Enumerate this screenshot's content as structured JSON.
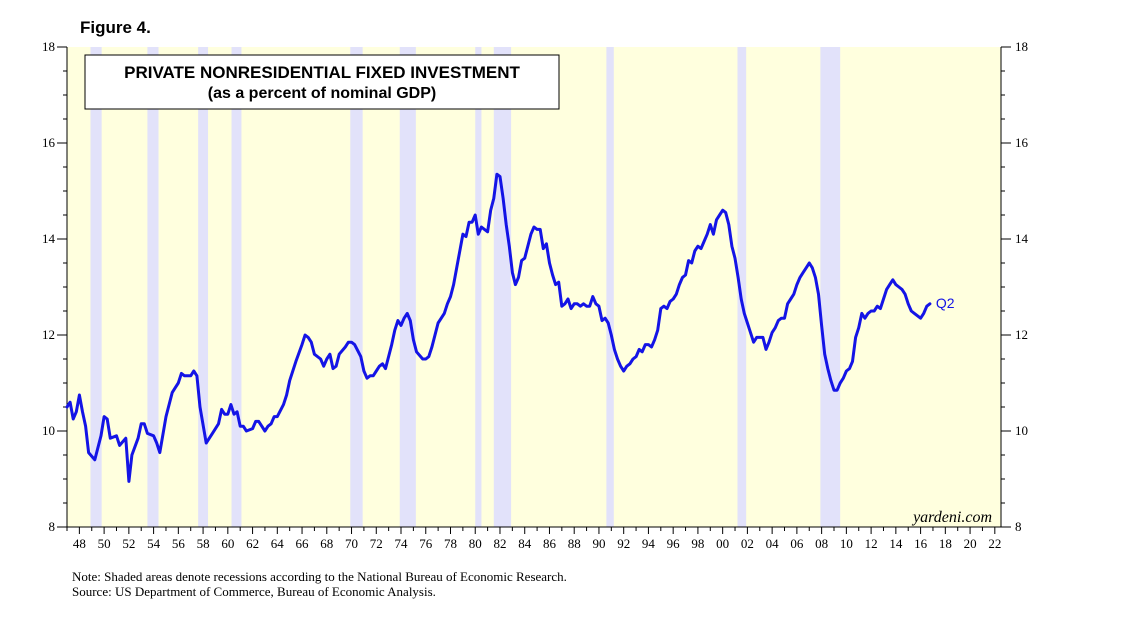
{
  "figure_label": "Figure 4.",
  "chart_data": {
    "type": "line",
    "title": "PRIVATE NONRESIDENTIAL FIXED INVESTMENT",
    "subtitle": "(as a percent of nominal GDP)",
    "xlabel": "",
    "ylabel": "",
    "xlim": [
      1947.0,
      2022.5
    ],
    "ylim": [
      8,
      18
    ],
    "y_ticks": [
      "8",
      "10",
      "12",
      "14",
      "16",
      "18"
    ],
    "y_tick_values": [
      8,
      10,
      12,
      14,
      16,
      18
    ],
    "x_tick_labels": [
      "48",
      "50",
      "52",
      "54",
      "56",
      "58",
      "60",
      "62",
      "64",
      "66",
      "68",
      "70",
      "72",
      "74",
      "76",
      "78",
      "80",
      "82",
      "84",
      "86",
      "88",
      "90",
      "92",
      "94",
      "96",
      "98",
      "00",
      "02",
      "04",
      "06",
      "08",
      "10",
      "12",
      "14",
      "16",
      "18",
      "20",
      "22"
    ],
    "x_tick_years": [
      1948,
      1950,
      1952,
      1954,
      1956,
      1958,
      1960,
      1962,
      1964,
      1966,
      1968,
      1970,
      1972,
      1974,
      1976,
      1978,
      1980,
      1982,
      1984,
      1986,
      1988,
      1990,
      1992,
      1994,
      1996,
      1998,
      2000,
      2002,
      2004,
      2006,
      2008,
      2010,
      2012,
      2014,
      2016,
      2018,
      2020,
      2022
    ],
    "recessions": [
      [
        1948.9,
        1949.8
      ],
      [
        1953.5,
        1954.4
      ],
      [
        1957.6,
        1958.4
      ],
      [
        1960.3,
        1961.1
      ],
      [
        1969.9,
        1970.9
      ],
      [
        1973.9,
        1975.2
      ],
      [
        1980.0,
        1980.5
      ],
      [
        1981.5,
        1982.9
      ],
      [
        1990.6,
        1991.2
      ],
      [
        2001.2,
        2001.9
      ],
      [
        2007.9,
        2009.5
      ]
    ],
    "series": [
      {
        "name": "Private nonresidential fixed investment (% of nominal GDP)",
        "color": "#1414e6",
        "end_label": "Q2",
        "points": [
          [
            1947.0,
            10.5
          ],
          [
            1947.25,
            10.6
          ],
          [
            1947.5,
            10.25
          ],
          [
            1947.75,
            10.4
          ],
          [
            1948.0,
            10.75
          ],
          [
            1948.25,
            10.4
          ],
          [
            1948.5,
            10.1
          ],
          [
            1948.75,
            9.55
          ],
          [
            1949.25,
            9.4
          ],
          [
            1949.75,
            9.9
          ],
          [
            1950.0,
            10.3
          ],
          [
            1950.25,
            10.25
          ],
          [
            1950.5,
            9.85
          ],
          [
            1951.0,
            9.9
          ],
          [
            1951.25,
            9.7
          ],
          [
            1951.75,
            9.85
          ],
          [
            1952.0,
            8.95
          ],
          [
            1952.25,
            9.5
          ],
          [
            1952.75,
            9.85
          ],
          [
            1953.0,
            10.15
          ],
          [
            1953.25,
            10.15
          ],
          [
            1953.5,
            9.95
          ],
          [
            1954.0,
            9.9
          ],
          [
            1954.25,
            9.75
          ],
          [
            1954.5,
            9.55
          ],
          [
            1955.0,
            10.3
          ],
          [
            1955.5,
            10.8
          ],
          [
            1955.75,
            10.9
          ],
          [
            1956.0,
            11.0
          ],
          [
            1956.25,
            11.2
          ],
          [
            1956.5,
            11.15
          ],
          [
            1957.0,
            11.15
          ],
          [
            1957.25,
            11.25
          ],
          [
            1957.5,
            11.15
          ],
          [
            1957.75,
            10.5
          ],
          [
            1958.25,
            9.75
          ],
          [
            1958.75,
            9.95
          ],
          [
            1959.25,
            10.15
          ],
          [
            1959.5,
            10.45
          ],
          [
            1959.75,
            10.35
          ],
          [
            1960.0,
            10.35
          ],
          [
            1960.25,
            10.55
          ],
          [
            1960.5,
            10.35
          ],
          [
            1960.75,
            10.4
          ],
          [
            1961.0,
            10.1
          ],
          [
            1961.25,
            10.1
          ],
          [
            1961.5,
            10.0
          ],
          [
            1962.0,
            10.05
          ],
          [
            1962.25,
            10.2
          ],
          [
            1962.5,
            10.2
          ],
          [
            1962.75,
            10.1
          ],
          [
            1963.0,
            10.0
          ],
          [
            1963.25,
            10.1
          ],
          [
            1963.5,
            10.15
          ],
          [
            1963.75,
            10.3
          ],
          [
            1964.0,
            10.3
          ],
          [
            1964.5,
            10.55
          ],
          [
            1964.75,
            10.75
          ],
          [
            1965.0,
            11.05
          ],
          [
            1965.5,
            11.45
          ],
          [
            1966.0,
            11.8
          ],
          [
            1966.25,
            12.0
          ],
          [
            1966.5,
            11.95
          ],
          [
            1966.75,
            11.85
          ],
          [
            1967.0,
            11.6
          ],
          [
            1967.5,
            11.5
          ],
          [
            1967.75,
            11.35
          ],
          [
            1968.0,
            11.5
          ],
          [
            1968.25,
            11.6
          ],
          [
            1968.5,
            11.3
          ],
          [
            1968.75,
            11.35
          ],
          [
            1969.0,
            11.6
          ],
          [
            1969.5,
            11.75
          ],
          [
            1969.75,
            11.85
          ],
          [
            1970.0,
            11.85
          ],
          [
            1970.25,
            11.8
          ],
          [
            1970.75,
            11.55
          ],
          [
            1971.0,
            11.25
          ],
          [
            1971.25,
            11.1
          ],
          [
            1971.5,
            11.15
          ],
          [
            1971.75,
            11.15
          ],
          [
            1972.0,
            11.25
          ],
          [
            1972.25,
            11.35
          ],
          [
            1972.5,
            11.4
          ],
          [
            1972.75,
            11.3
          ],
          [
            1973.0,
            11.55
          ],
          [
            1973.25,
            11.8
          ],
          [
            1973.5,
            12.1
          ],
          [
            1973.75,
            12.3
          ],
          [
            1974.0,
            12.2
          ],
          [
            1974.25,
            12.35
          ],
          [
            1974.5,
            12.45
          ],
          [
            1974.75,
            12.3
          ],
          [
            1975.0,
            11.9
          ],
          [
            1975.25,
            11.65
          ],
          [
            1975.75,
            11.5
          ],
          [
            1976.0,
            11.5
          ],
          [
            1976.25,
            11.55
          ],
          [
            1976.5,
            11.75
          ],
          [
            1976.75,
            12.0
          ],
          [
            1977.0,
            12.25
          ],
          [
            1977.5,
            12.45
          ],
          [
            1977.75,
            12.65
          ],
          [
            1978.0,
            12.8
          ],
          [
            1978.25,
            13.05
          ],
          [
            1978.5,
            13.4
          ],
          [
            1978.75,
            13.75
          ],
          [
            1979.0,
            14.1
          ],
          [
            1979.25,
            14.05
          ],
          [
            1979.5,
            14.35
          ],
          [
            1979.75,
            14.35
          ],
          [
            1980.0,
            14.5
          ],
          [
            1980.25,
            14.1
          ],
          [
            1980.5,
            14.25
          ],
          [
            1980.75,
            14.2
          ],
          [
            1981.0,
            14.15
          ],
          [
            1981.25,
            14.6
          ],
          [
            1981.5,
            14.85
          ],
          [
            1981.75,
            15.35
          ],
          [
            1982.0,
            15.3
          ],
          [
            1982.25,
            14.85
          ],
          [
            1982.5,
            14.3
          ],
          [
            1982.75,
            13.85
          ],
          [
            1983.0,
            13.3
          ],
          [
            1983.25,
            13.05
          ],
          [
            1983.5,
            13.2
          ],
          [
            1983.75,
            13.55
          ],
          [
            1984.0,
            13.6
          ],
          [
            1984.25,
            13.85
          ],
          [
            1984.5,
            14.1
          ],
          [
            1984.75,
            14.25
          ],
          [
            1985.0,
            14.2
          ],
          [
            1985.25,
            14.2
          ],
          [
            1985.5,
            13.8
          ],
          [
            1985.75,
            13.9
          ],
          [
            1986.0,
            13.5
          ],
          [
            1986.25,
            13.25
          ],
          [
            1986.5,
            13.05
          ],
          [
            1986.75,
            13.1
          ],
          [
            1987.0,
            12.6
          ],
          [
            1987.25,
            12.65
          ],
          [
            1987.5,
            12.75
          ],
          [
            1987.75,
            12.55
          ],
          [
            1988.0,
            12.65
          ],
          [
            1988.25,
            12.65
          ],
          [
            1988.5,
            12.6
          ],
          [
            1988.75,
            12.65
          ],
          [
            1989.0,
            12.6
          ],
          [
            1989.25,
            12.6
          ],
          [
            1989.5,
            12.8
          ],
          [
            1989.75,
            12.65
          ],
          [
            1990.0,
            12.6
          ],
          [
            1990.25,
            12.3
          ],
          [
            1990.5,
            12.35
          ],
          [
            1990.75,
            12.25
          ],
          [
            1991.0,
            12.0
          ],
          [
            1991.25,
            11.7
          ],
          [
            1991.5,
            11.5
          ],
          [
            1991.75,
            11.35
          ],
          [
            1992.0,
            11.25
          ],
          [
            1992.25,
            11.35
          ],
          [
            1992.5,
            11.4
          ],
          [
            1992.75,
            11.5
          ],
          [
            1993.0,
            11.55
          ],
          [
            1993.25,
            11.7
          ],
          [
            1993.5,
            11.65
          ],
          [
            1993.75,
            11.8
          ],
          [
            1994.0,
            11.8
          ],
          [
            1994.25,
            11.75
          ],
          [
            1994.5,
            11.9
          ],
          [
            1994.75,
            12.1
          ],
          [
            1995.0,
            12.55
          ],
          [
            1995.25,
            12.6
          ],
          [
            1995.5,
            12.55
          ],
          [
            1995.75,
            12.7
          ],
          [
            1996.0,
            12.75
          ],
          [
            1996.25,
            12.85
          ],
          [
            1996.5,
            13.05
          ],
          [
            1996.75,
            13.2
          ],
          [
            1997.0,
            13.25
          ],
          [
            1997.25,
            13.55
          ],
          [
            1997.5,
            13.5
          ],
          [
            1997.75,
            13.75
          ],
          [
            1998.0,
            13.85
          ],
          [
            1998.25,
            13.8
          ],
          [
            1998.5,
            13.95
          ],
          [
            1998.75,
            14.1
          ],
          [
            1999.0,
            14.3
          ],
          [
            1999.25,
            14.1
          ],
          [
            1999.5,
            14.4
          ],
          [
            1999.75,
            14.5
          ],
          [
            2000.0,
            14.6
          ],
          [
            2000.25,
            14.55
          ],
          [
            2000.5,
            14.3
          ],
          [
            2000.75,
            13.85
          ],
          [
            2001.0,
            13.6
          ],
          [
            2001.25,
            13.2
          ],
          [
            2001.5,
            12.75
          ],
          [
            2001.75,
            12.45
          ],
          [
            2002.0,
            12.25
          ],
          [
            2002.25,
            12.05
          ],
          [
            2002.5,
            11.85
          ],
          [
            2002.75,
            11.95
          ],
          [
            2003.0,
            11.95
          ],
          [
            2003.25,
            11.95
          ],
          [
            2003.5,
            11.7
          ],
          [
            2003.75,
            11.85
          ],
          [
            2004.0,
            12.05
          ],
          [
            2004.25,
            12.15
          ],
          [
            2004.5,
            12.3
          ],
          [
            2004.75,
            12.35
          ],
          [
            2005.0,
            12.35
          ],
          [
            2005.25,
            12.65
          ],
          [
            2005.5,
            12.75
          ],
          [
            2005.75,
            12.85
          ],
          [
            2006.0,
            13.05
          ],
          [
            2006.25,
            13.2
          ],
          [
            2006.5,
            13.3
          ],
          [
            2006.75,
            13.4
          ],
          [
            2007.0,
            13.5
          ],
          [
            2007.25,
            13.4
          ],
          [
            2007.5,
            13.2
          ],
          [
            2007.75,
            12.85
          ],
          [
            2008.0,
            12.2
          ],
          [
            2008.25,
            11.6
          ],
          [
            2008.5,
            11.3
          ],
          [
            2008.75,
            11.05
          ],
          [
            2009.0,
            10.85
          ],
          [
            2009.25,
            10.85
          ],
          [
            2009.5,
            11.0
          ],
          [
            2009.75,
            11.1
          ],
          [
            2010.0,
            11.25
          ],
          [
            2010.25,
            11.3
          ],
          [
            2010.5,
            11.45
          ],
          [
            2010.75,
            11.95
          ],
          [
            2011.0,
            12.15
          ],
          [
            2011.25,
            12.45
          ],
          [
            2011.5,
            12.35
          ],
          [
            2011.75,
            12.45
          ],
          [
            2012.0,
            12.5
          ],
          [
            2012.25,
            12.5
          ],
          [
            2012.5,
            12.6
          ],
          [
            2012.75,
            12.55
          ],
          [
            2013.0,
            12.75
          ],
          [
            2013.25,
            12.95
          ],
          [
            2013.5,
            13.05
          ],
          [
            2013.75,
            13.15
          ],
          [
            2014.0,
            13.05
          ],
          [
            2014.25,
            13.0
          ],
          [
            2014.5,
            12.95
          ],
          [
            2014.75,
            12.85
          ],
          [
            2015.0,
            12.65
          ],
          [
            2015.25,
            12.5
          ],
          [
            2015.5,
            12.45
          ],
          [
            2015.75,
            12.4
          ],
          [
            2016.0,
            12.35
          ],
          [
            2016.25,
            12.45
          ],
          [
            2016.5,
            12.6
          ],
          [
            2016.75,
            12.65
          ]
        ]
      }
    ],
    "legend_box_lines": [
      "PRIVATE NONRESIDENTIAL FIXED INVESTMENT",
      "(as a percent of nominal GDP)"
    ],
    "watermark": "yardeni.com"
  },
  "notes": {
    "line1": "Note: Shaded areas denote recessions according to the National Bureau of Economic Research.",
    "line2": "Source: US Department of Commerce, Bureau of Economic Analysis."
  },
  "colors": {
    "plot_background": "#ffffde",
    "recession_shade": "#e2e2fa",
    "line": "#1414e6"
  }
}
